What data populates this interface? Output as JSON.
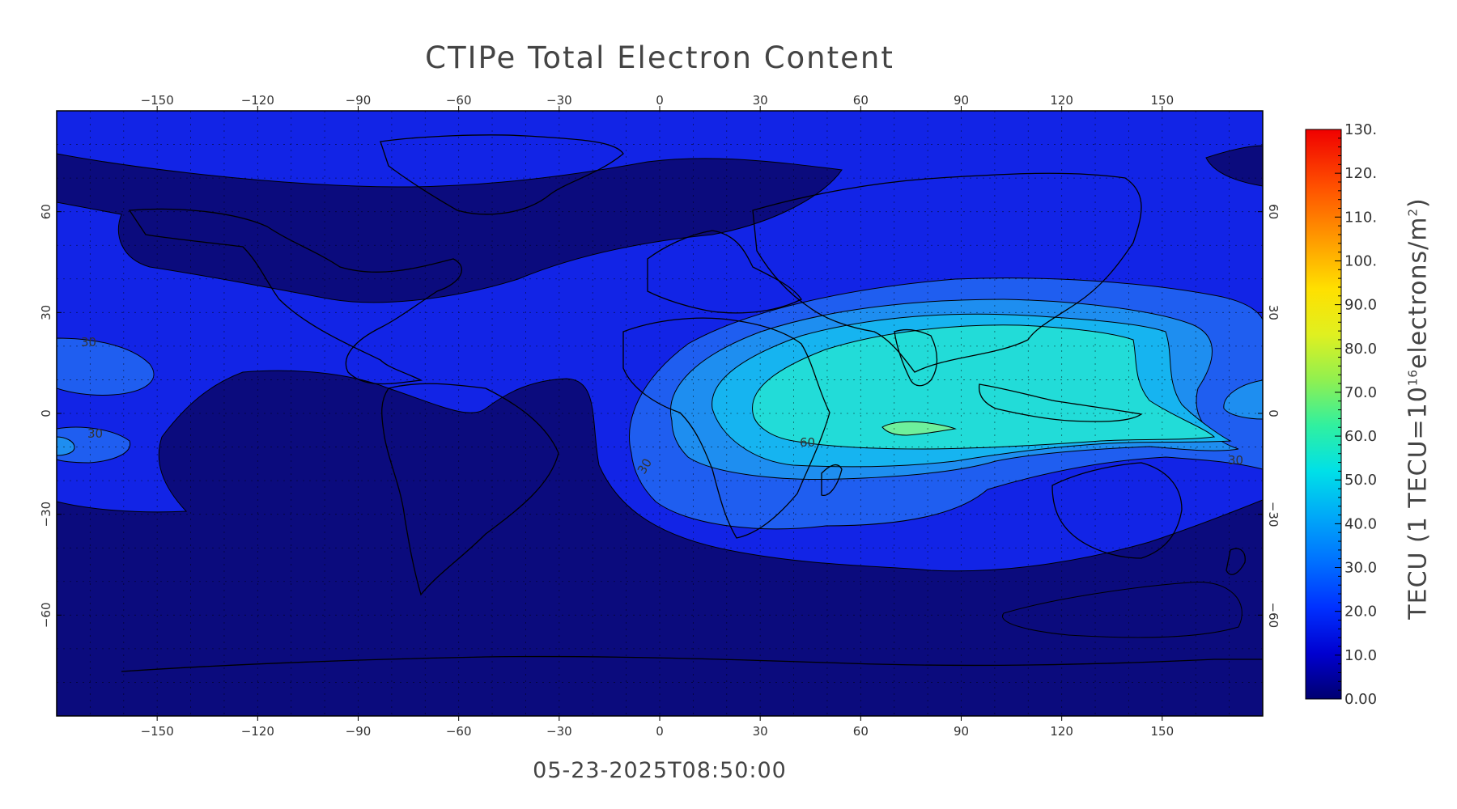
{
  "title": "CTIPe Total Electron Content",
  "timestamp": "05-23-2025T08:50:00",
  "colorbar": {
    "label_prefix": "TECU (1 TECU=10",
    "label_exp": "16",
    "label_mid": "electrons/m",
    "label_exp2": "2",
    "label_suffix": ")",
    "ticks": [
      "130.",
      "120.",
      "110.",
      "100.",
      "90.0",
      "80.0",
      "70.0",
      "60.0",
      "50.0",
      "40.0",
      "30.0",
      "20.0",
      "10.0",
      "0.00"
    ],
    "range": [
      0,
      130
    ]
  },
  "map_axes": {
    "lon_ticks": [
      "-150",
      "-120",
      "-90",
      "-60",
      "-30",
      "0",
      "30",
      "60",
      "90",
      "120",
      "150"
    ],
    "lat_ticks": [
      "60",
      "30",
      "0",
      "-30",
      "-60"
    ]
  },
  "contour_labels": [
    "30",
    "30",
    "60",
    "30",
    "30"
  ],
  "colors": {
    "level_0": "#0b0b7d",
    "level_10": "#0b1bd6",
    "level_20": "#1440f2",
    "level_30": "#1e7ff0",
    "level_40": "#16b0f0",
    "level_50": "#20dcd8",
    "level_60": "#6ef09c"
  }
}
